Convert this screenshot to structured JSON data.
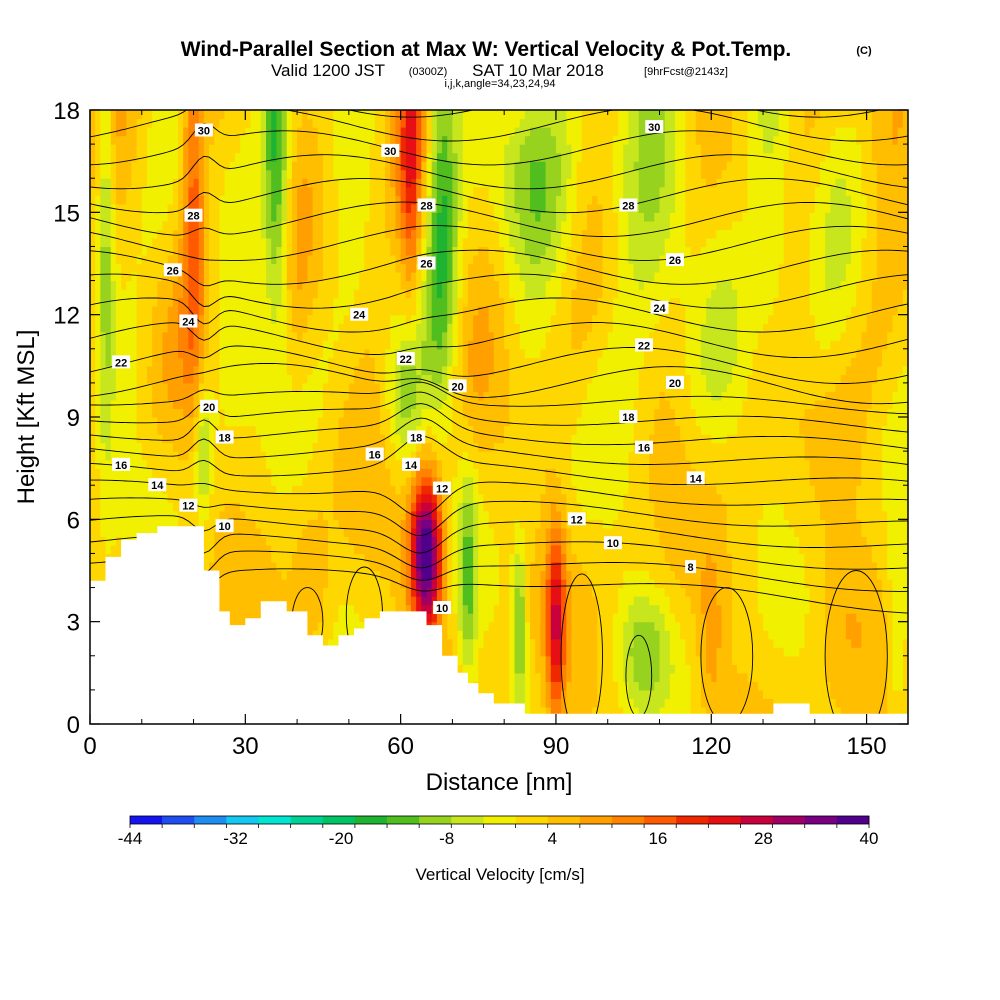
{
  "header": {
    "title": "Wind-Parallel Section at Max W: Vertical Velocity & Pot.Temp.",
    "title_units": "(C)",
    "subtitle_valid": "Valid 1200 JST",
    "subtitle_utc": "(0300Z)",
    "subtitle_date": "SAT 10 Mar 2018",
    "subtitle_fcst": "[9hrFcst@2143z]",
    "subtitle_indices": "i,j,k,angle=34,23,24,94"
  },
  "chart_data": {
    "type": "heatmap",
    "xlabel": "Distance [nm]",
    "ylabel": "Height [Kft MSL]",
    "xlim": [
      0,
      158
    ],
    "ylim": [
      0,
      18
    ],
    "xticks": [
      "0",
      "30",
      "60",
      "90",
      "120",
      "150"
    ],
    "xtick_values": [
      0,
      30,
      60,
      90,
      120,
      150
    ],
    "yticks": [
      "0",
      "3",
      "6",
      "9",
      "12",
      "15",
      "18"
    ],
    "ytick_values": [
      0,
      3,
      6,
      9,
      12,
      15,
      18
    ],
    "colorbar": {
      "title": "Vertical Velocity [cm/s]",
      "labels": [
        "-44",
        "-32",
        "-20",
        "-8",
        "4",
        "16",
        "28",
        "40"
      ],
      "label_values": [
        -44,
        -32,
        -20,
        -8,
        4,
        16,
        28,
        40
      ],
      "colors": [
        "#1414f0",
        "#1e4ef0",
        "#1e8cf0",
        "#14c8f0",
        "#00e6d2",
        "#00d296",
        "#00c364",
        "#1eb432",
        "#50be1e",
        "#96d21e",
        "#c8e61e",
        "#f0f000",
        "#ffd700",
        "#ffbe00",
        "#ffa000",
        "#ff8200",
        "#ff5a00",
        "#f02800",
        "#e60f14",
        "#c8003c",
        "#a00064",
        "#780082",
        "#50008c"
      ]
    },
    "terrain": [
      [
        0,
        4.2
      ],
      [
        3,
        4.2
      ],
      [
        3,
        4.9
      ],
      [
        6,
        4.9
      ],
      [
        6,
        5.4
      ],
      [
        9,
        5.4
      ],
      [
        9,
        5.6
      ],
      [
        13,
        5.6
      ],
      [
        13,
        5.8
      ],
      [
        22,
        5.8
      ],
      [
        22,
        4.5
      ],
      [
        25,
        4.5
      ],
      [
        25,
        3.3
      ],
      [
        27,
        3.3
      ],
      [
        27,
        2.9
      ],
      [
        30,
        2.9
      ],
      [
        30,
        3.1
      ],
      [
        33,
        3.1
      ],
      [
        33,
        3.6
      ],
      [
        38,
        3.6
      ],
      [
        38,
        3.3
      ],
      [
        42,
        3.3
      ],
      [
        42,
        2.6
      ],
      [
        45,
        2.6
      ],
      [
        45,
        2.3
      ],
      [
        48,
        2.3
      ],
      [
        48,
        2.6
      ],
      [
        51,
        2.6
      ],
      [
        51,
        2.8
      ],
      [
        53,
        2.8
      ],
      [
        53,
        3.1
      ],
      [
        56,
        3.1
      ],
      [
        56,
        3.3
      ],
      [
        65,
        3.3
      ],
      [
        65,
        2.9
      ],
      [
        68,
        2.9
      ],
      [
        68,
        2.0
      ],
      [
        71,
        2.0
      ],
      [
        71,
        1.5
      ],
      [
        73,
        1.5
      ],
      [
        73,
        1.2
      ],
      [
        75,
        1.2
      ],
      [
        75,
        0.9
      ],
      [
        78,
        0.9
      ],
      [
        78,
        0.6
      ],
      [
        84,
        0.6
      ],
      [
        84,
        0.3
      ],
      [
        132,
        0.3
      ],
      [
        132,
        0.6
      ],
      [
        139,
        0.6
      ],
      [
        139,
        0.3
      ],
      [
        158,
        0.3
      ]
    ],
    "w_features": [
      {
        "x": 65,
        "y": 5.0,
        "w": 40,
        "sx": 2.2,
        "sy": 1.7
      },
      {
        "x": 90,
        "y": 3.0,
        "w": 22,
        "sx": 1.3,
        "sy": 2.0
      },
      {
        "x": 83,
        "y": 2.8,
        "w": -14,
        "sx": 0.9,
        "sy": 1.8
      },
      {
        "x": 73,
        "y": 4.2,
        "w": -12,
        "sx": 1.2,
        "sy": 2.3
      },
      {
        "x": 62,
        "y": 16.5,
        "w": 16,
        "sx": 1.6,
        "sy": 3.0
      },
      {
        "x": 68,
        "y": 15.0,
        "w": -16,
        "sx": 2.2,
        "sy": 4.0
      },
      {
        "x": 20,
        "y": 16.0,
        "w": 14,
        "sx": 1.6,
        "sy": 4.0
      },
      {
        "x": 36,
        "y": 16.0,
        "w": -18,
        "sx": 1.8,
        "sy": 3.5
      },
      {
        "x": 3,
        "y": 15.0,
        "w": -12,
        "sx": 1.2,
        "sy": 5.0
      },
      {
        "x": 107,
        "y": 2.2,
        "w": -10,
        "sx": 3.5,
        "sy": 1.2
      },
      {
        "x": 120,
        "y": 2.4,
        "w": 6,
        "sx": 1.8,
        "sy": 1.8
      },
      {
        "x": 85,
        "y": 16.5,
        "w": -9,
        "sx": 6.0,
        "sy": 2.0
      },
      {
        "x": 108,
        "y": 14.5,
        "w": -7,
        "sx": 8.0,
        "sy": 3.0
      },
      {
        "x": 132,
        "y": 15.0,
        "w": -8,
        "sx": 3.0,
        "sy": 4.0
      },
      {
        "x": 22,
        "y": 8.0,
        "w": -10,
        "sx": 1.2,
        "sy": 1.5
      },
      {
        "x": 61,
        "y": 9.5,
        "w": -9,
        "sx": 2.5,
        "sy": 1.5
      },
      {
        "x": 43,
        "y": 4.0,
        "w": 6,
        "sx": 2.5,
        "sy": 1.5
      },
      {
        "x": 156,
        "y": 2.5,
        "w": -8,
        "sx": 1.5,
        "sy": 2.0
      },
      {
        "x": 145,
        "y": 3.0,
        "w": 4,
        "sx": 4.0,
        "sy": 2.0
      }
    ],
    "theta_contours": {
      "interval": 1,
      "labels": [
        {
          "text": "30",
          "x": 22,
          "y": 17.4
        },
        {
          "text": "30",
          "x": 58,
          "y": 16.8
        },
        {
          "text": "30",
          "x": 109,
          "y": 17.5
        },
        {
          "text": "28",
          "x": 20,
          "y": 14.9
        },
        {
          "text": "28",
          "x": 65,
          "y": 15.2
        },
        {
          "text": "28",
          "x": 104,
          "y": 15.2
        },
        {
          "text": "26",
          "x": 16,
          "y": 13.3
        },
        {
          "text": "26",
          "x": 65,
          "y": 13.5
        },
        {
          "text": "26",
          "x": 113,
          "y": 13.6
        },
        {
          "text": "24",
          "x": 19,
          "y": 11.8
        },
        {
          "text": "24",
          "x": 52,
          "y": 12.0
        },
        {
          "text": "24",
          "x": 110,
          "y": 12.2
        },
        {
          "text": "22",
          "x": 6,
          "y": 10.6
        },
        {
          "text": "22",
          "x": 61,
          "y": 10.7
        },
        {
          "text": "22",
          "x": 107,
          "y": 11.1
        },
        {
          "text": "20",
          "x": 23,
          "y": 9.3
        },
        {
          "text": "20",
          "x": 71,
          "y": 9.9
        },
        {
          "text": "20",
          "x": 113,
          "y": 10.0
        },
        {
          "text": "18",
          "x": 26,
          "y": 8.4
        },
        {
          "text": "18",
          "x": 63,
          "y": 8.4
        },
        {
          "text": "18",
          "x": 104,
          "y": 9.0
        },
        {
          "text": "16",
          "x": 6,
          "y": 7.6
        },
        {
          "text": "16",
          "x": 55,
          "y": 7.9
        },
        {
          "text": "16",
          "x": 107,
          "y": 8.1
        },
        {
          "text": "14",
          "x": 13,
          "y": 7.0
        },
        {
          "text": "14",
          "x": 62,
          "y": 7.6
        },
        {
          "text": "14",
          "x": 117,
          "y": 7.2
        },
        {
          "text": "12",
          "x": 19,
          "y": 6.4
        },
        {
          "text": "12",
          "x": 68,
          "y": 6.9
        },
        {
          "text": "12",
          "x": 94,
          "y": 6.0
        },
        {
          "text": "10",
          "x": 26,
          "y": 5.8
        },
        {
          "text": "10",
          "x": 101,
          "y": 5.3
        },
        {
          "text": "10",
          "x": 68,
          "y": 3.4
        },
        {
          "text": "8",
          "x": 116,
          "y": 4.6
        }
      ]
    }
  }
}
